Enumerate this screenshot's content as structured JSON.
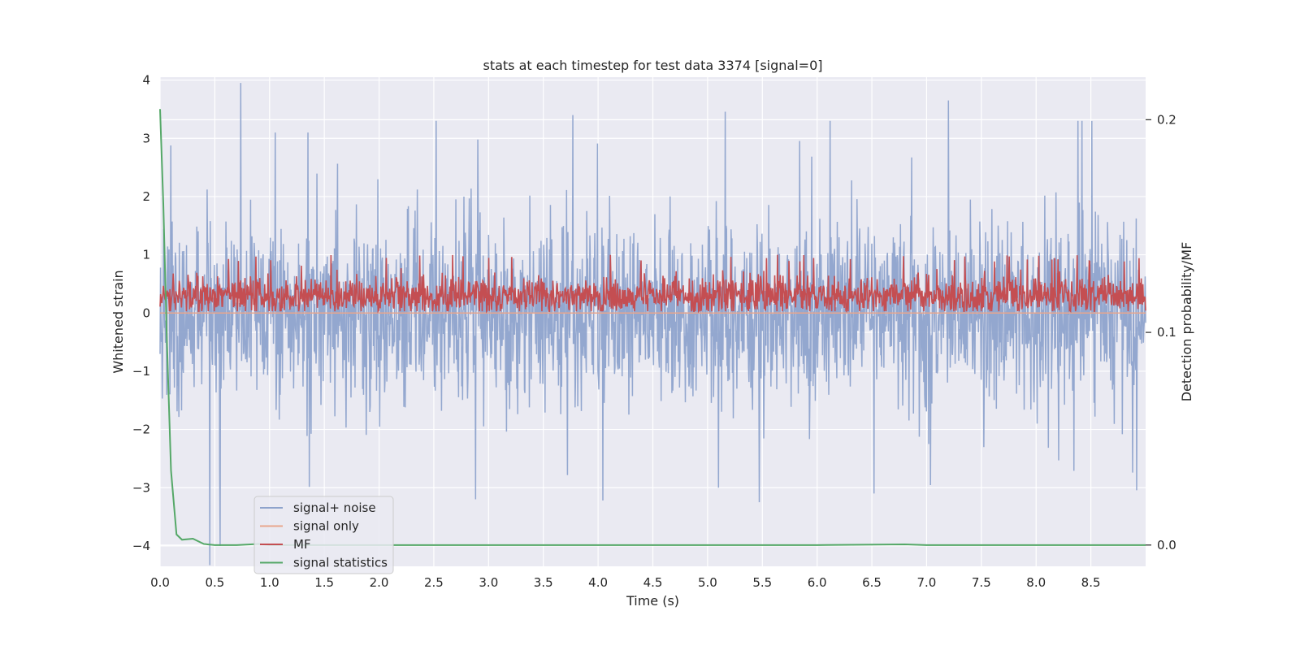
{
  "chart_data": {
    "type": "line",
    "title": "stats at each timestep for test data 3374 [signal=0]",
    "xlabel": "Time (s)",
    "ylabel": "Whitened strain",
    "ylabel_right": "Detection probability/MF",
    "xlim": [
      0.0,
      9.0
    ],
    "ylim": [
      -4.35,
      4.05
    ],
    "ylim_right": [
      -0.01,
      0.22
    ],
    "xticks": [
      0.0,
      0.5,
      1.0,
      1.5,
      2.0,
      2.5,
      3.0,
      3.5,
      4.0,
      4.5,
      5.0,
      5.5,
      6.0,
      6.5,
      7.0,
      7.5,
      8.0,
      8.5
    ],
    "xtick_labels": [
      "0.0",
      "0.5",
      "1.0",
      "1.5",
      "2.0",
      "2.5",
      "3.0",
      "3.5",
      "4.0",
      "4.5",
      "5.0",
      "5.5",
      "6.0",
      "6.5",
      "7.0",
      "7.5",
      "8.0",
      "8.5"
    ],
    "yticks": [
      -4,
      -3,
      -2,
      -1,
      0,
      1,
      2,
      3,
      4
    ],
    "ytick_labels": [
      "−4",
      "−3",
      "−2",
      "−1",
      "0",
      "1",
      "2",
      "3",
      "4"
    ],
    "yticks_right": [
      0.0,
      0.1,
      0.2
    ],
    "ytick_labels_right": [
      "0.0",
      "0.1",
      "0.2"
    ],
    "grid": true,
    "legend_position": "lower-left",
    "series": [
      {
        "name": "signal+ noise",
        "color": "#8ea3cc",
        "axis": "left",
        "description": "dense whitened-strain noise, roughly between -2.5 and 2.5 with spikes up to about 3.6 and down to about -4.0",
        "amplitude": 0.75,
        "peaks": [
          [
            0.55,
            -4.0
          ],
          [
            1.05,
            3.1
          ],
          [
            1.35,
            3.1
          ],
          [
            2.52,
            3.3
          ],
          [
            3.77,
            3.4
          ],
          [
            5.1,
            -3.0
          ],
          [
            5.47,
            -3.25
          ],
          [
            6.12,
            3.3
          ],
          [
            6.52,
            -3.1
          ],
          [
            7.2,
            3.65
          ],
          [
            8.38,
            3.3
          ],
          [
            8.42,
            3.3
          ]
        ]
      },
      {
        "name": "signal only",
        "color": "#e8a58c",
        "axis": "left",
        "description": "flat at 0 (no signal injected)",
        "values_constant": 0.0
      },
      {
        "name": "MF",
        "color": "#c44e52",
        "axis": "left",
        "description": "matched-filter output fluctuating between about 0 and 1.0, centred near 0.3",
        "low": 0.03,
        "high": 1.0,
        "mean": 0.3
      },
      {
        "name": "signal statistics",
        "color": "#55a868",
        "axis": "right",
        "x": [
          0.0,
          0.03,
          0.06,
          0.1,
          0.15,
          0.2,
          0.3,
          0.4,
          0.5,
          0.6,
          0.7,
          0.9,
          1.0,
          2.0,
          3.0,
          4.0,
          5.0,
          6.0,
          6.8,
          7.0,
          8.0,
          9.0
        ],
        "y": [
          0.205,
          0.16,
          0.1,
          0.035,
          0.005,
          0.0025,
          0.003,
          0.0005,
          0.0,
          0.0,
          0.0,
          0.0005,
          0.0,
          0.0,
          0.0,
          0.0,
          0.0,
          0.0,
          0.0003,
          0.0,
          0.0,
          0.0
        ]
      }
    ]
  }
}
